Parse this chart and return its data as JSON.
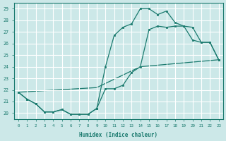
{
  "xlabel": "Humidex (Indice chaleur)",
  "bg_color": "#cce8e8",
  "grid_color": "#ffffff",
  "line_color": "#1a7a6e",
  "xlim": [
    -0.5,
    23.5
  ],
  "ylim": [
    19.5,
    29.5
  ],
  "xticks": [
    0,
    1,
    2,
    3,
    4,
    5,
    6,
    7,
    8,
    9,
    10,
    11,
    12,
    13,
    14,
    15,
    16,
    17,
    18,
    19,
    20,
    21,
    22,
    23
  ],
  "yticks": [
    20,
    21,
    22,
    23,
    24,
    25,
    26,
    27,
    28,
    29
  ],
  "line1_x": [
    0,
    1,
    2,
    3,
    4,
    5,
    6,
    7,
    8,
    9,
    10,
    11,
    12,
    13,
    14,
    15,
    16,
    17,
    18,
    19,
    20,
    21,
    22,
    23
  ],
  "line1_y": [
    21.8,
    21.2,
    20.8,
    20.1,
    20.1,
    20.3,
    19.9,
    19.9,
    19.9,
    20.4,
    22.1,
    22.1,
    22.4,
    23.5,
    24.0,
    27.2,
    27.5,
    27.4,
    27.5,
    27.5,
    26.3,
    26.1,
    26.1,
    24.6
  ],
  "line2_x": [
    0,
    1,
    2,
    3,
    4,
    5,
    6,
    7,
    8,
    9,
    10,
    11,
    12,
    13,
    14,
    15,
    16,
    17,
    18,
    19,
    20,
    21,
    22,
    23
  ],
  "line2_y": [
    21.8,
    21.2,
    20.8,
    20.1,
    20.1,
    20.3,
    19.9,
    19.9,
    19.9,
    20.4,
    24.0,
    26.7,
    27.4,
    27.7,
    29.0,
    29.0,
    28.5,
    28.8,
    27.8,
    27.5,
    27.4,
    26.1,
    26.1,
    24.6
  ],
  "line3_x": [
    0,
    9,
    14,
    23
  ],
  "line3_y": [
    21.8,
    22.2,
    24.0,
    24.6
  ]
}
